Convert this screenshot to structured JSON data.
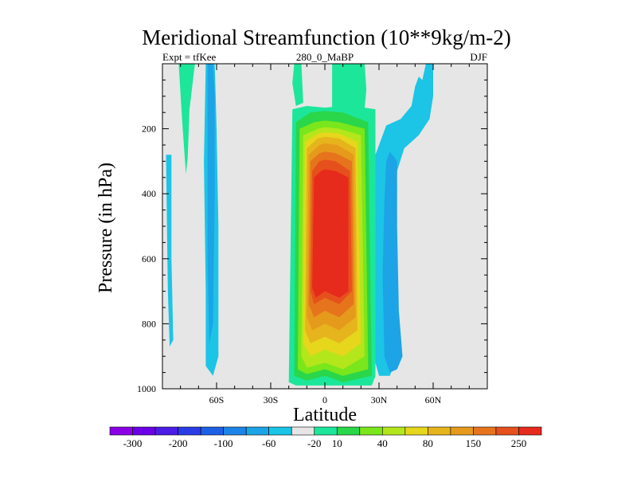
{
  "chart_data": {
    "type": "heatmap",
    "title": "Meridional Streamfunction (10**9kg/m-2)",
    "left_label": "Expt = tfKee",
    "center_label": "280_0_MaBP",
    "right_label": "DJF",
    "xlabel": "Latitude",
    "ylabel": "Pressure (in hPa)",
    "xlim": [
      -90,
      90
    ],
    "ylim": [
      1000,
      0
    ],
    "x_ticks": [
      {
        "value": -60,
        "label": "60S"
      },
      {
        "value": -30,
        "label": "30S"
      },
      {
        "value": 0,
        "label": "0"
      },
      {
        "value": 30,
        "label": "30N"
      },
      {
        "value": 60,
        "label": "60N"
      }
    ],
    "y_ticks": [
      {
        "value": 200,
        "label": "200"
      },
      {
        "value": 400,
        "label": "400"
      },
      {
        "value": 600,
        "label": "600"
      },
      {
        "value": 800,
        "label": "800"
      },
      {
        "value": 1000,
        "label": "1000"
      }
    ],
    "background_color": "#e6e6e6",
    "colorbar": {
      "colors": [
        "#8a00e6",
        "#6a00e6",
        "#4a1ce6",
        "#2a3ce6",
        "#1c60e6",
        "#1c84e6",
        "#1ca4e6",
        "#1cc4e6",
        "#e6e6e6",
        "#1ce69a",
        "#2ad64a",
        "#7ae61c",
        "#b4e61c",
        "#e6d61c",
        "#e6b41c",
        "#e69a1c",
        "#e6741c",
        "#e6501c",
        "#e62a1c"
      ],
      "labels": [
        {
          "after_box": 0,
          "label": "-300"
        },
        {
          "after_box": 2,
          "label": "-200"
        },
        {
          "after_box": 4,
          "label": "-100"
        },
        {
          "after_box": 6,
          "label": "-60"
        },
        {
          "after_box": 8,
          "label": "-20"
        },
        {
          "after_box": 9,
          "label": "10"
        },
        {
          "after_box": 11,
          "label": "40"
        },
        {
          "after_box": 13,
          "label": "80"
        },
        {
          "after_box": 15,
          "label": "150"
        },
        {
          "after_box": 17,
          "label": "250"
        }
      ]
    },
    "regions": [
      {
        "name": "green-band-north-tail",
        "color": "#1ce69a",
        "points": [
          [
            4,
            0
          ],
          [
            22,
            0
          ],
          [
            23,
            80
          ],
          [
            22,
            140
          ],
          [
            12,
            150
          ],
          [
            4,
            140
          ]
        ]
      },
      {
        "name": "green-band-south-tail",
        "color": "#1ce69a",
        "points": [
          [
            -17,
            0
          ],
          [
            -13,
            0
          ],
          [
            -12,
            120
          ],
          [
            -16,
            130
          ],
          [
            -18,
            60
          ]
        ]
      },
      {
        "name": "green-south-polar-tongue",
        "color": "#1ce69a",
        "points": [
          [
            -81,
            0
          ],
          [
            -72,
            0
          ],
          [
            -75,
            140
          ],
          [
            -76,
            290
          ],
          [
            -77,
            340
          ],
          [
            -79,
            180
          ]
        ]
      },
      {
        "name": "blue-north-outer",
        "color": "#1cc4e6",
        "points": [
          [
            24,
            640
          ],
          [
            25,
            400
          ],
          [
            28,
            280
          ],
          [
            34,
            190
          ],
          [
            42,
            170
          ],
          [
            48,
            130
          ],
          [
            50,
            70
          ],
          [
            52,
            40
          ],
          [
            54,
            50
          ],
          [
            56,
            0
          ],
          [
            60,
            0
          ],
          [
            60,
            100
          ],
          [
            58,
            170
          ],
          [
            52,
            220
          ],
          [
            44,
            260
          ],
          [
            40,
            330
          ],
          [
            39,
            500
          ],
          [
            38,
            680
          ],
          [
            40,
            900
          ],
          [
            36,
            960
          ],
          [
            30,
            960
          ],
          [
            27,
            900
          ]
        ]
      },
      {
        "name": "blue-north-mid",
        "color": "#1ca4e6",
        "points": [
          [
            34,
            300
          ],
          [
            36,
            270
          ],
          [
            40,
            300
          ],
          [
            40,
            500
          ],
          [
            41,
            760
          ],
          [
            43,
            900
          ],
          [
            40,
            940
          ],
          [
            36,
            950
          ],
          [
            33,
            900
          ],
          [
            32,
            650
          ],
          [
            33,
            420
          ]
        ]
      },
      {
        "name": "blue-south-high-lat",
        "color": "#1cc4e6",
        "points": [
          [
            -88,
            280
          ],
          [
            -85,
            280
          ],
          [
            -85,
            600
          ],
          [
            -84,
            850
          ],
          [
            -86,
            870
          ],
          [
            -87,
            700
          ]
        ]
      },
      {
        "name": "blue-south-60-outer",
        "color": "#1cc4e6",
        "points": [
          [
            -66,
            0
          ],
          [
            -61,
            0
          ],
          [
            -60,
            200
          ],
          [
            -59,
            500
          ],
          [
            -59,
            900
          ],
          [
            -62,
            960
          ],
          [
            -66,
            930
          ],
          [
            -66,
            700
          ],
          [
            -67,
            300
          ]
        ]
      },
      {
        "name": "blue-south-60-inner",
        "color": "#1ca4e6",
        "points": [
          [
            -65,
            0
          ],
          [
            -62,
            0
          ],
          [
            -61,
            100
          ],
          [
            -61,
            400
          ],
          [
            -62,
            800
          ],
          [
            -64,
            860
          ],
          [
            -65,
            600
          ]
        ]
      },
      {
        "name": "c10",
        "color": "#1ce69a",
        "points": [
          [
            -18,
            140
          ],
          [
            -10,
            130
          ],
          [
            0,
            135
          ],
          [
            10,
            130
          ],
          [
            22,
            135
          ],
          [
            28,
            140
          ],
          [
            28,
            960
          ],
          [
            26,
            990
          ],
          [
            -16,
            990
          ],
          [
            -20,
            980
          ]
        ]
      },
      {
        "name": "c20",
        "color": "#2ad64a",
        "points": [
          [
            -16,
            180
          ],
          [
            -8,
            150
          ],
          [
            0,
            145
          ],
          [
            10,
            150
          ],
          [
            24,
            180
          ],
          [
            26,
            960
          ],
          [
            10,
            980
          ],
          [
            0,
            960
          ],
          [
            -10,
            975
          ],
          [
            -17,
            960
          ]
        ]
      },
      {
        "name": "c30",
        "color": "#7ae61c",
        "points": [
          [
            -14,
            200
          ],
          [
            -6,
            180
          ],
          [
            0,
            175
          ],
          [
            8,
            180
          ],
          [
            22,
            200
          ],
          [
            24,
            940
          ],
          [
            10,
            960
          ],
          [
            0,
            940
          ],
          [
            -10,
            955
          ],
          [
            -15,
            940
          ]
        ]
      },
      {
        "name": "c40",
        "color": "#b4e61c",
        "points": [
          [
            -12,
            220
          ],
          [
            -4,
            200
          ],
          [
            0,
            195
          ],
          [
            8,
            200
          ],
          [
            20,
            220
          ],
          [
            22,
            900
          ],
          [
            10,
            940
          ],
          [
            0,
            920
          ],
          [
            -10,
            935
          ],
          [
            -13,
            900
          ]
        ]
      },
      {
        "name": "c60",
        "color": "#e6d61c",
        "points": [
          [
            -11,
            240
          ],
          [
            -4,
            215
          ],
          [
            0,
            210
          ],
          [
            8,
            215
          ],
          [
            18,
            240
          ],
          [
            20,
            860
          ],
          [
            10,
            900
          ],
          [
            0,
            880
          ],
          [
            -8,
            900
          ],
          [
            -12,
            860
          ]
        ]
      },
      {
        "name": "c80",
        "color": "#e6b41c",
        "points": [
          [
            -10,
            260
          ],
          [
            -4,
            230
          ],
          [
            0,
            225
          ],
          [
            8,
            230
          ],
          [
            17,
            260
          ],
          [
            18,
            820
          ],
          [
            8,
            860
          ],
          [
            0,
            840
          ],
          [
            -8,
            860
          ],
          [
            -11,
            820
          ]
        ]
      },
      {
        "name": "c100",
        "color": "#e69a1c",
        "points": [
          [
            -9,
            280
          ],
          [
            -3,
            250
          ],
          [
            0,
            245
          ],
          [
            7,
            250
          ],
          [
            16,
            280
          ],
          [
            17,
            780
          ],
          [
            8,
            820
          ],
          [
            0,
            800
          ],
          [
            -7,
            820
          ],
          [
            -10,
            780
          ]
        ]
      },
      {
        "name": "c150",
        "color": "#e6741c",
        "points": [
          [
            -8,
            300
          ],
          [
            -3,
            275
          ],
          [
            0,
            270
          ],
          [
            6,
            275
          ],
          [
            15,
            300
          ],
          [
            16,
            740
          ],
          [
            8,
            780
          ],
          [
            0,
            760
          ],
          [
            -6,
            780
          ],
          [
            -9,
            740
          ]
        ]
      },
      {
        "name": "c200",
        "color": "#e6501c",
        "points": [
          [
            -7,
            330
          ],
          [
            -3,
            300
          ],
          [
            0,
            295
          ],
          [
            6,
            300
          ],
          [
            14,
            330
          ],
          [
            15,
            700
          ],
          [
            8,
            740
          ],
          [
            0,
            720
          ],
          [
            -6,
            740
          ],
          [
            -8,
            700
          ]
        ]
      },
      {
        "name": "c250-core",
        "color": "#e62a1c",
        "points": [
          [
            -6,
            350
          ],
          [
            -2,
            330
          ],
          [
            0,
            325
          ],
          [
            6,
            330
          ],
          [
            13,
            350
          ],
          [
            13,
            700
          ],
          [
            8,
            720
          ],
          [
            0,
            700
          ],
          [
            -5,
            720
          ],
          [
            -7,
            690
          ]
        ]
      }
    ]
  }
}
